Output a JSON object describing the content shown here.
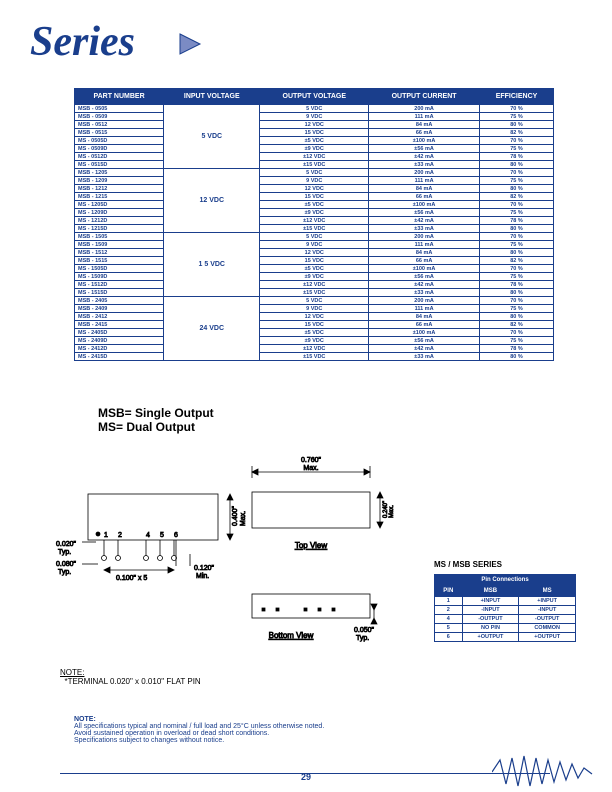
{
  "header": {
    "text": "Series"
  },
  "colors": {
    "brand": "#1a3e8c",
    "text": "#1a3e8c"
  },
  "table": {
    "headers": [
      "PART NUMBER",
      "INPUT VOLTAGE",
      "OUTPUT VOLTAGE",
      "OUTPUT CURRENT",
      "EFFICIENCY"
    ],
    "groups": [
      {
        "iv": "5 VDC",
        "rows": [
          [
            "MSB - 0505",
            "5 VDC",
            "200 mA",
            "70 %"
          ],
          [
            "MSB - 0509",
            "9 VDC",
            "111 mA",
            "75 %"
          ],
          [
            "MSB - 0512",
            "12 VDC",
            "84 mA",
            "80 %"
          ],
          [
            "MSB - 0515",
            "15 VDC",
            "66 mA",
            "82 %"
          ],
          [
            "MS - 0505D",
            "±5 VDC",
            "±100 mA",
            "70 %"
          ],
          [
            "MS - 0509D",
            "±9 VDC",
            "±56 mA",
            "75 %"
          ],
          [
            "MS - 0512D",
            "±12 VDC",
            "±42 mA",
            "78 %"
          ],
          [
            "MS - 0515D",
            "±15 VDC",
            "±33 mA",
            "80 %"
          ]
        ]
      },
      {
        "iv": "12 VDC",
        "rows": [
          [
            "MSB - 1205",
            "5 VDC",
            "200 mA",
            "70 %"
          ],
          [
            "MSB - 1209",
            "9 VDC",
            "111 mA",
            "75 %"
          ],
          [
            "MSB - 1212",
            "12 VDC",
            "84 mA",
            "80 %"
          ],
          [
            "MSB - 1215",
            "15 VDC",
            "66 mA",
            "82 %"
          ],
          [
            "MS - 1205D",
            "±5 VDC",
            "±100 mA",
            "70 %"
          ],
          [
            "MS - 1209D",
            "±9 VDC",
            "±56 mA",
            "75 %"
          ],
          [
            "MS - 1212D",
            "±12 VDC",
            "±42 mA",
            "78 %"
          ],
          [
            "MS - 1215D",
            "±15 VDC",
            "±33 mA",
            "80 %"
          ]
        ]
      },
      {
        "iv": "1 5 VDC",
        "rows": [
          [
            "MSB - 1505",
            "5 VDC",
            "200 mA",
            "70 %"
          ],
          [
            "MSB - 1509",
            "9 VDC",
            "111 mA",
            "75 %"
          ],
          [
            "MSB - 1512",
            "12 VDC",
            "84 mA",
            "80 %"
          ],
          [
            "MSB - 1515",
            "15 VDC",
            "66 mA",
            "82 %"
          ],
          [
            "MS - 1505D",
            "±5 VDC",
            "±100 mA",
            "70 %"
          ],
          [
            "MS - 1509D",
            "±9 VDC",
            "±56 mA",
            "75 %"
          ],
          [
            "MS - 1512D",
            "±12 VDC",
            "±42 mA",
            "78 %"
          ],
          [
            "MS - 1515D",
            "±15 VDC",
            "±33 mA",
            "80 %"
          ]
        ]
      },
      {
        "iv": "24 VDC",
        "rows": [
          [
            "MSB - 2405",
            "5 VDC",
            "200 mA",
            "70 %"
          ],
          [
            "MSB - 2409",
            "9 VDC",
            "111 mA",
            "75 %"
          ],
          [
            "MSB - 2412",
            "12 VDC",
            "84 mA",
            "80 %"
          ],
          [
            "MSB - 2415",
            "15 VDC",
            "66 mA",
            "82 %"
          ],
          [
            "MS - 2405D",
            "±5 VDC",
            "±100 mA",
            "70 %"
          ],
          [
            "MS - 2409D",
            "±9 VDC",
            "±56 mA",
            "75 %"
          ],
          [
            "MS - 2412D",
            "±12 VDC",
            "±42 mA",
            "78 %"
          ],
          [
            "MS - 2415D",
            "±15 VDC",
            "±33 mA",
            "80 %"
          ]
        ]
      }
    ]
  },
  "legend": {
    "line1": "MSB= Single Output",
    "line2": "MS= Dual Output"
  },
  "drawing": {
    "dim_top": "0.760\"",
    "dim_top_sub": "Max.",
    "dim_h": "0.400\"",
    "dim_h_sub": "Max.",
    "dim_h2": "0.240\"",
    "dim_h2_sub": "Max.",
    "dim_020": "0.020\"",
    "dim_080": "0.080\"",
    "typ": "Typ.",
    "dim_100": "0.100\" x 5",
    "dim_120": "0.120\"",
    "min": "Min.",
    "dim_050": "0.050\"",
    "pins": [
      "1",
      "2",
      "4",
      "5",
      "6"
    ],
    "top_view": "Top View",
    "bottom_view": "Bottom View"
  },
  "note1": {
    "title": "NOTE:",
    "body": "*TERMINAL    0.020\" x 0.010\" FLAT PIN"
  },
  "note2": {
    "title": "NOTE:",
    "l1": "All specifications typical and nominal / full load and 25°C unless otherwise noted.",
    "l2": "Avoid sustained operation in overload or dead short conditions.",
    "l3": "Specifications subject to changes without notice."
  },
  "pin_table": {
    "title": "MS / MSB SERIES",
    "header": "Pin Connections",
    "cols": [
      "PIN",
      "MSB",
      "MS"
    ],
    "rows": [
      [
        "1",
        "+INPUT",
        "+INPUT"
      ],
      [
        "2",
        "-INPUT",
        "-INPUT"
      ],
      [
        "4",
        "-OUTPUT",
        "-OUTPUT"
      ],
      [
        "5",
        "NO PIN",
        "COMMON"
      ],
      [
        "6",
        "+OUTPUT",
        "+OUTPUT"
      ]
    ]
  },
  "page": "29"
}
